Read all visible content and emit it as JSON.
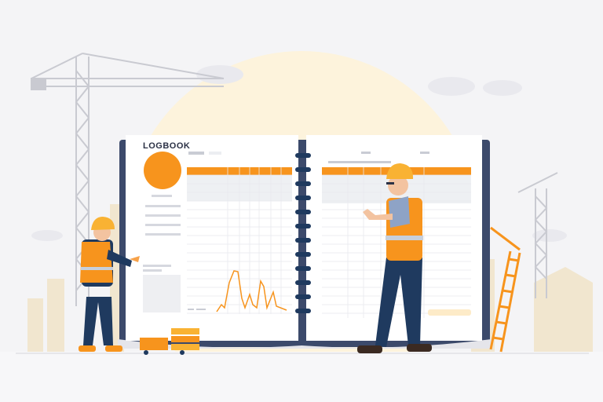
{
  "logbook": {
    "title": "LOGBOOK"
  },
  "colors": {
    "accent": "#f7941d",
    "navy": "#1f3a5f",
    "sun": "#fdf3dc",
    "background": "#f4f4f6",
    "helmet": "#f9b233"
  },
  "icons": [
    "crane-icon",
    "worker-icon",
    "spiral-binding-icon",
    "line-chart-icon",
    "pallet-jack-icon",
    "ladder-icon"
  ]
}
